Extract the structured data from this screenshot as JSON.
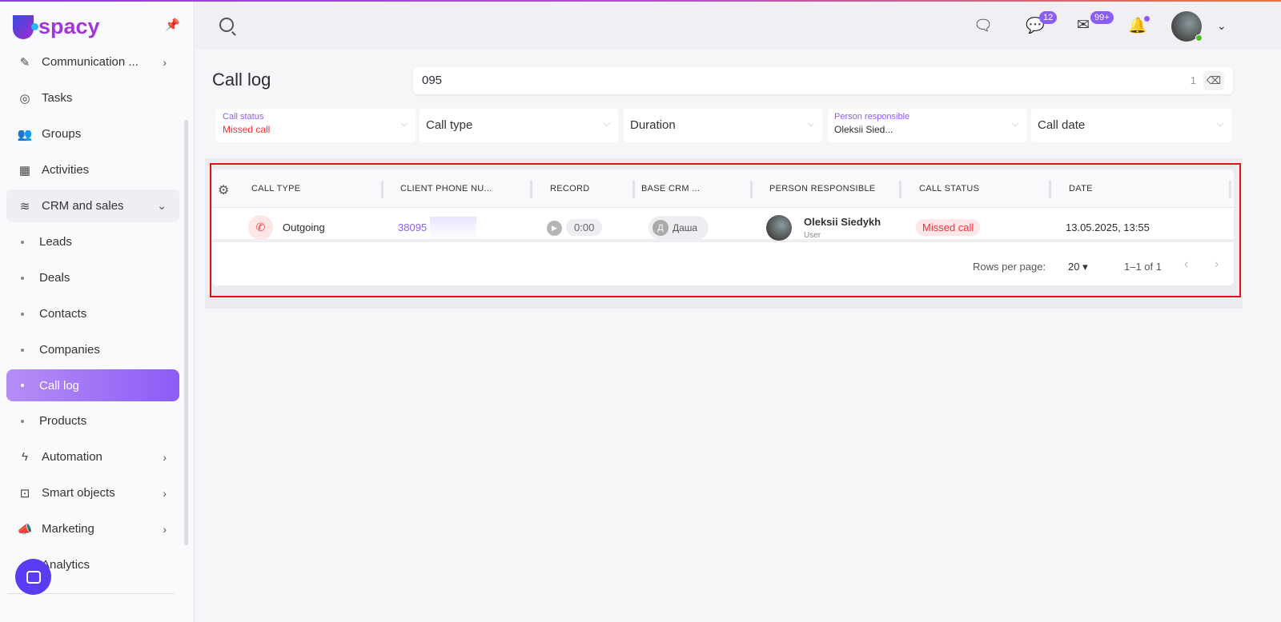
{
  "app": {
    "logo": "spacy",
    "accent": "#8b5cf6"
  },
  "sidebar": {
    "items": [
      {
        "label": "Communication ...",
        "icon": "chat-check-icon",
        "chevron": "›"
      },
      {
        "label": "Tasks",
        "icon": "check-circle-icon"
      },
      {
        "label": "Groups",
        "icon": "users-icon"
      },
      {
        "label": "Activities",
        "icon": "calendar-icon"
      },
      {
        "label": "CRM and sales",
        "icon": "funnel-icon",
        "chevron": "⌄"
      },
      {
        "label": "Leads",
        "sub": true
      },
      {
        "label": "Deals",
        "sub": true
      },
      {
        "label": "Contacts",
        "sub": true
      },
      {
        "label": "Companies",
        "sub": true
      },
      {
        "label": "Call log",
        "sub": true,
        "active": true
      },
      {
        "label": "Products",
        "sub": true
      },
      {
        "label": "Automation",
        "icon": "lightning-icon",
        "chevron": "›"
      },
      {
        "label": "Smart objects",
        "icon": "scan-icon",
        "chevron": "›"
      },
      {
        "label": "Marketing",
        "icon": "megaphone-icon",
        "chevron": "›"
      },
      {
        "label": "Analytics",
        "icon": "chart-icon"
      }
    ]
  },
  "topbar": {
    "chats_badge": "12",
    "mail_badge": "99+"
  },
  "page": {
    "title": "Call log"
  },
  "search": {
    "value": "095",
    "count": "1"
  },
  "filters": [
    {
      "label": "Call status",
      "value": "Missed call"
    },
    {
      "placeholder": "Call type"
    },
    {
      "placeholder": "Duration"
    },
    {
      "label": "Person responsible",
      "value": "Oleksii Sied..."
    },
    {
      "placeholder": "Call date"
    }
  ],
  "table": {
    "columns": [
      "CALL TYPE",
      "CLIENT PHONE NU...",
      "RECORD",
      "BASE CRM ...",
      "PERSON RESPONSIBLE",
      "CALL STATUS",
      "DATE"
    ],
    "rows": [
      {
        "call_type": "Outgoing",
        "phone": "38095",
        "record": "0:00",
        "crm_initial": "Д",
        "crm": "Даша",
        "person": "Oleksii Siedykh",
        "role": "User",
        "status": "Missed call",
        "date": "13.05.2025, 13:55"
      }
    ],
    "footer": {
      "rows_per_page_label": "Rows per page:",
      "rows_per_page": "20",
      "range": "1–1 of 1"
    }
  }
}
